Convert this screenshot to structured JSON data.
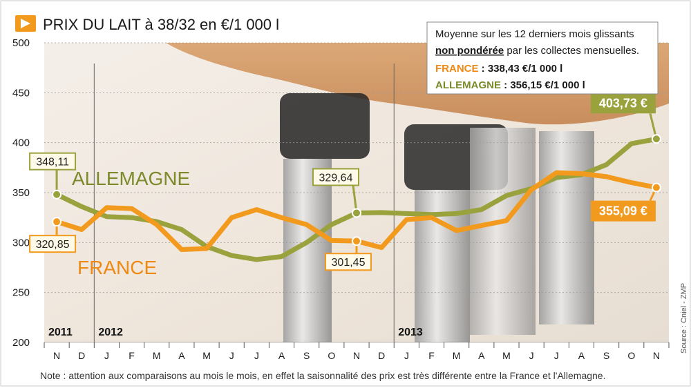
{
  "header": {
    "title": "PRIX DU LAIT à 38/32 en €/1 000 l"
  },
  "legend": {
    "line1": "Moyenne sur les 12 derniers mois glissants",
    "line2_bold": "non pondérée",
    "line2_rest": " par les collectes mensuelles.",
    "france_name": "FRANCE",
    "france_value": " : 338,43 €/1 000 l",
    "allemagne_name": "ALLEMAGNE",
    "allemagne_value": " : 356,15 €/1 000 l"
  },
  "note": "Note : attention aux comparaisons au mois le mois, en effet la saisonnalité des prix est très différente entre la France et l'Allemagne.",
  "source": "Source : Cniel - ZMP",
  "colors": {
    "france": "#f29a1e",
    "allemagne": "#9aa23e",
    "france_label": "#ee8a14",
    "allemagne_label": "#7c8a2a",
    "title_icon": "#f29a1e"
  },
  "chart_data": {
    "type": "line",
    "title": "PRIX DU LAIT à 38/32 en €/1 000 l",
    "ylim": [
      200,
      500
    ],
    "yticks": [
      500,
      450,
      400,
      350,
      300,
      250,
      200
    ],
    "categories": [
      "N",
      "D",
      "J",
      "F",
      "M",
      "A",
      "M",
      "J",
      "J",
      "A",
      "S",
      "O",
      "N",
      "D",
      "J",
      "F",
      "M",
      "A",
      "M",
      "J",
      "J",
      "A",
      "S",
      "O",
      "N"
    ],
    "years": [
      {
        "label": "2011",
        "index": 0
      },
      {
        "label": "2012",
        "index": 2
      },
      {
        "label": "2013",
        "index": 14
      }
    ],
    "series": [
      {
        "name": "ALLEMAGNE",
        "values": [
          348.11,
          336,
          326,
          325,
          321,
          313,
          296,
          287,
          283,
          286,
          300,
          318,
          329.64,
          330,
          329,
          328,
          329,
          333,
          347,
          354,
          365,
          368,
          378,
          399,
          403.73
        ]
      },
      {
        "name": "FRANCE",
        "values": [
          320.85,
          313,
          335,
          334,
          318,
          293,
          294,
          325,
          333,
          325,
          318,
          302,
          301.45,
          295,
          323,
          325,
          312,
          317,
          322,
          353,
          370,
          369,
          366,
          360,
          355.09
        ]
      }
    ],
    "annotations": [
      {
        "series": "ALLEMAGNE",
        "index": 0,
        "text": "348,11"
      },
      {
        "series": "FRANCE",
        "index": 0,
        "text": "320,85"
      },
      {
        "series": "ALLEMAGNE",
        "index": 12,
        "text": "329,64"
      },
      {
        "series": "FRANCE",
        "index": 12,
        "text": "301,45"
      },
      {
        "series": "ALLEMAGNE",
        "index": 24,
        "text": "403,73 €"
      },
      {
        "series": "FRANCE",
        "index": 24,
        "text": "355,09 €"
      }
    ]
  }
}
